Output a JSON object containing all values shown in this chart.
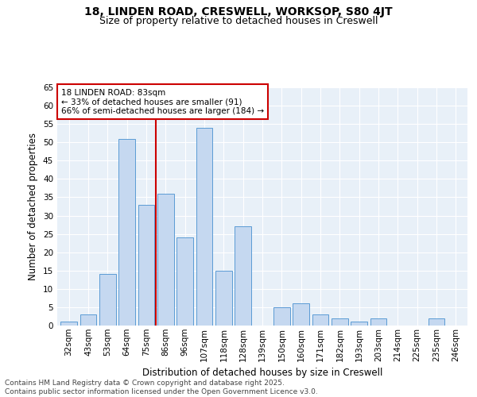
{
  "title1": "18, LINDEN ROAD, CRESWELL, WORKSOP, S80 4JT",
  "title2": "Size of property relative to detached houses in Creswell",
  "xlabel": "Distribution of detached houses by size in Creswell",
  "ylabel": "Number of detached properties",
  "categories": [
    "32sqm",
    "43sqm",
    "53sqm",
    "64sqm",
    "75sqm",
    "86sqm",
    "96sqm",
    "107sqm",
    "118sqm",
    "128sqm",
    "139sqm",
    "150sqm",
    "160sqm",
    "171sqm",
    "182sqm",
    "193sqm",
    "203sqm",
    "214sqm",
    "225sqm",
    "235sqm",
    "246sqm"
  ],
  "values": [
    1,
    3,
    14,
    51,
    33,
    36,
    24,
    54,
    15,
    27,
    0,
    5,
    6,
    3,
    2,
    1,
    2,
    0,
    0,
    2,
    0
  ],
  "bar_color": "#c5d8f0",
  "bar_edge_color": "#5b9bd5",
  "vline_index": 4.5,
  "vline_color": "#cc0000",
  "annotation_text": "18 LINDEN ROAD: 83sqm\n← 33% of detached houses are smaller (91)\n66% of semi-detached houses are larger (184) →",
  "annotation_box_color": "#ffffff",
  "annotation_box_edge_color": "#cc0000",
  "ylim": [
    0,
    65
  ],
  "yticks": [
    0,
    5,
    10,
    15,
    20,
    25,
    30,
    35,
    40,
    45,
    50,
    55,
    60,
    65
  ],
  "footer": "Contains HM Land Registry data © Crown copyright and database right 2025.\nContains public sector information licensed under the Open Government Licence v3.0.",
  "bg_color": "#ffffff",
  "plot_bg_color": "#e8f0f8",
  "grid_color": "#ffffff",
  "title_fontsize": 10,
  "subtitle_fontsize": 9,
  "axis_label_fontsize": 8.5,
  "tick_fontsize": 7.5,
  "footer_fontsize": 6.5,
  "annotation_fontsize": 7.5
}
